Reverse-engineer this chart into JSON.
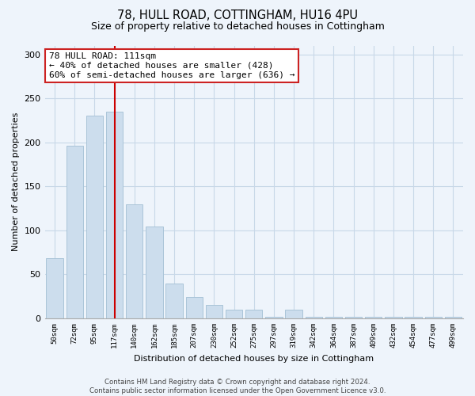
{
  "title": "78, HULL ROAD, COTTINGHAM, HU16 4PU",
  "subtitle": "Size of property relative to detached houses in Cottingham",
  "xlabel": "Distribution of detached houses by size in Cottingham",
  "ylabel": "Number of detached properties",
  "bar_labels": [
    "50sqm",
    "72sqm",
    "95sqm",
    "117sqm",
    "140sqm",
    "162sqm",
    "185sqm",
    "207sqm",
    "230sqm",
    "252sqm",
    "275sqm",
    "297sqm",
    "319sqm",
    "342sqm",
    "364sqm",
    "387sqm",
    "409sqm",
    "432sqm",
    "454sqm",
    "477sqm",
    "499sqm"
  ],
  "bar_values": [
    68,
    196,
    230,
    235,
    130,
    104,
    40,
    24,
    15,
    10,
    10,
    2,
    10,
    2,
    2,
    2,
    2,
    2,
    2,
    2,
    2
  ],
  "bar_color": "#ccdded",
  "bar_edge_color": "#aac4d8",
  "ylim": [
    0,
    310
  ],
  "yticks": [
    0,
    50,
    100,
    150,
    200,
    250,
    300
  ],
  "vline_x_index": 3,
  "vline_color": "#cc0000",
  "ann_text_line1": "78 HULL ROAD: 111sqm",
  "ann_text_line2": "← 40% of detached houses are smaller (428)",
  "ann_text_line3": "60% of semi-detached houses are larger (636) →",
  "footer_line1": "Contains HM Land Registry data © Crown copyright and database right 2024.",
  "footer_line2": "Contains public sector information licensed under the Open Government Licence v3.0.",
  "bg_color": "#eef4fb",
  "plot_bg_color": "#eef4fb",
  "grid_color": "#c8d8e8"
}
